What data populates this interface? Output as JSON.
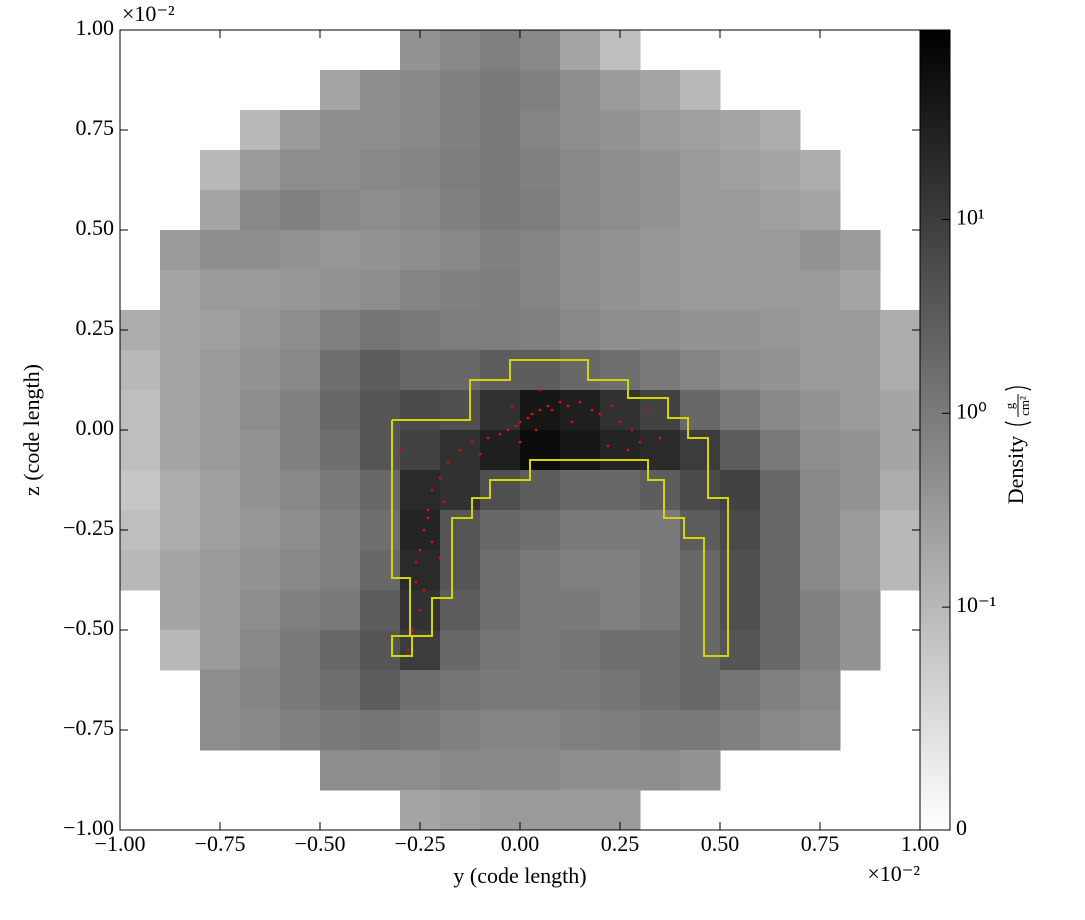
{
  "chart_data": {
    "type": "heatmap",
    "x_label": "y  (code length)",
    "y_label": "z  (code length)",
    "x_offset_label": "×10⁻²",
    "y_offset_label": "×10⁻²",
    "xlim": [
      -1,
      1
    ],
    "ylim": [
      -1,
      1
    ],
    "xticks": [
      {
        "value": -1,
        "label": "−1.00"
      },
      {
        "value": -0.75,
        "label": "−0.75"
      },
      {
        "value": -0.5,
        "label": "−0.50"
      },
      {
        "value": -0.25,
        "label": "−0.25"
      },
      {
        "value": 0,
        "label": "0.00"
      },
      {
        "value": 0.25,
        "label": "0.25"
      },
      {
        "value": 0.5,
        "label": "0.50"
      },
      {
        "value": 0.75,
        "label": "0.75"
      },
      {
        "value": 1,
        "label": "1.00"
      }
    ],
    "yticks": [
      {
        "value": -1,
        "label": "−1.00"
      },
      {
        "value": -0.75,
        "label": "−0.75"
      },
      {
        "value": -0.5,
        "label": "−0.50"
      },
      {
        "value": -0.25,
        "label": "−0.25"
      },
      {
        "value": 0,
        "label": "0.00"
      },
      {
        "value": 0.25,
        "label": "0.25"
      },
      {
        "value": 0.5,
        "label": "0.50"
      },
      {
        "value": 0.75,
        "label": "0.75"
      },
      {
        "value": 1,
        "label": "1.00"
      }
    ],
    "z": [
      [
        null,
        null,
        null,
        null,
        null,
        null,
        null,
        0.4,
        0.6,
        0.8,
        0.6,
        0.2,
        0.08,
        null,
        null,
        null,
        null,
        null,
        null,
        null
      ],
      [
        null,
        null,
        null,
        null,
        null,
        0.2,
        0.5,
        0.6,
        0.8,
        1.0,
        0.8,
        0.5,
        0.3,
        0.2,
        0.1,
        null,
        null,
        null,
        null,
        null
      ],
      [
        null,
        null,
        null,
        0.1,
        0.3,
        0.5,
        0.5,
        0.6,
        0.8,
        1.0,
        0.7,
        0.5,
        0.4,
        0.3,
        0.25,
        0.2,
        0.15,
        null,
        null,
        null
      ],
      [
        null,
        null,
        0.1,
        0.3,
        0.5,
        0.5,
        0.6,
        0.7,
        0.9,
        1.0,
        0.8,
        0.6,
        0.5,
        0.4,
        0.3,
        0.25,
        0.2,
        0.15,
        null,
        null
      ],
      [
        null,
        null,
        0.2,
        0.6,
        0.8,
        0.6,
        0.5,
        0.6,
        0.8,
        1.0,
        0.9,
        0.6,
        0.5,
        0.4,
        0.3,
        0.3,
        0.25,
        0.2,
        null,
        null
      ],
      [
        null,
        0.3,
        0.5,
        0.5,
        0.4,
        0.35,
        0.4,
        0.5,
        0.6,
        0.8,
        0.7,
        0.5,
        0.4,
        0.35,
        0.3,
        0.3,
        0.3,
        0.4,
        0.3,
        null
      ],
      [
        null,
        0.2,
        0.3,
        0.3,
        0.35,
        0.4,
        0.5,
        0.7,
        0.8,
        0.9,
        0.7,
        0.5,
        0.4,
        0.35,
        0.3,
        0.3,
        0.3,
        0.3,
        0.2,
        null
      ],
      [
        0.15,
        0.2,
        0.25,
        0.35,
        0.5,
        0.8,
        1.2,
        1.0,
        0.9,
        0.9,
        0.8,
        0.6,
        0.5,
        0.5,
        0.4,
        0.4,
        0.35,
        0.3,
        0.3,
        0.15
      ],
      [
        0.1,
        0.2,
        0.3,
        0.4,
        0.6,
        1.5,
        3,
        2,
        2,
        3,
        3,
        2,
        1.5,
        1,
        0.7,
        0.5,
        0.4,
        0.3,
        0.3,
        0.15
      ],
      [
        0.08,
        0.2,
        0.3,
        0.5,
        0.8,
        2,
        4,
        6,
        5,
        15,
        40,
        30,
        15,
        8,
        2,
        1,
        0.6,
        0.4,
        0.3,
        0.2
      ],
      [
        0.08,
        0.2,
        0.3,
        0.4,
        0.8,
        1.5,
        4,
        8,
        15,
        30,
        60,
        40,
        25,
        20,
        10,
        3,
        1,
        0.5,
        0.4,
        0.2
      ],
      [
        0.06,
        0.15,
        0.25,
        0.4,
        0.6,
        1,
        2,
        20,
        15,
        5,
        3,
        2,
        2,
        3,
        6,
        8,
        2,
        0.6,
        0.4,
        0.15
      ],
      [
        0.08,
        0.15,
        0.25,
        0.35,
        0.5,
        0.8,
        1.5,
        25,
        4,
        2,
        1.5,
        1,
        1,
        1,
        3,
        6,
        2,
        0.6,
        0.3,
        0.1
      ],
      [
        0.1,
        0.2,
        0.3,
        0.4,
        0.6,
        0.8,
        2,
        20,
        4,
        1.5,
        1,
        0.8,
        0.8,
        1,
        2,
        5,
        2,
        0.6,
        0.3,
        0.1
      ],
      [
        null,
        0.2,
        0.3,
        0.5,
        0.8,
        1,
        3,
        15,
        3,
        1.5,
        1,
        1,
        0.8,
        1,
        2,
        5,
        2,
        0.8,
        0.4,
        null
      ],
      [
        null,
        0.1,
        0.3,
        0.6,
        1,
        2,
        4,
        10,
        2,
        1.2,
        1,
        1.2,
        1.5,
        1.5,
        2,
        4,
        2,
        0.8,
        0.4,
        null
      ],
      [
        null,
        null,
        0.5,
        0.7,
        1,
        1.5,
        3,
        1.5,
        1.2,
        1,
        1,
        1,
        1.2,
        1.5,
        2,
        1.2,
        0.8,
        0.6,
        null,
        null
      ],
      [
        null,
        null,
        0.5,
        0.6,
        0.8,
        1,
        1.2,
        1,
        0.8,
        0.7,
        0.7,
        0.8,
        0.9,
        1,
        1,
        0.8,
        0.6,
        0.5,
        null,
        null
      ],
      [
        null,
        null,
        null,
        null,
        null,
        0.5,
        0.5,
        0.5,
        0.6,
        0.6,
        0.6,
        0.5,
        0.5,
        0.5,
        0.4,
        null,
        null,
        null,
        null,
        null
      ],
      [
        null,
        null,
        null,
        null,
        null,
        null,
        null,
        0.2,
        0.25,
        0.3,
        0.3,
        0.3,
        0.3,
        null,
        null,
        null,
        null,
        null,
        null,
        null
      ]
    ],
    "colorbar": {
      "label": "Density",
      "unit_numerator": "g",
      "unit_denominator": "cm²",
      "scale": "symlog",
      "linthresh": 0.01,
      "linscale": 0.15,
      "lim": [
        0,
        95
      ],
      "ticks": [
        {
          "value": 0,
          "label": "0"
        },
        {
          "value": 0.1,
          "label": "10⁻¹"
        },
        {
          "value": 1,
          "label": "10⁰"
        },
        {
          "value": 10,
          "label": "10¹"
        }
      ]
    },
    "contour": {
      "color": "#d4d400",
      "x": [
        -0.32,
        -0.32,
        -0.275,
        -0.275,
        -0.32,
        -0.32,
        -0.27,
        -0.27,
        -0.22,
        -0.22,
        -0.17,
        -0.17,
        -0.12,
        -0.12,
        -0.075,
        -0.075,
        0.025,
        0.025,
        0.32,
        0.32,
        0.36,
        0.36,
        0.41,
        0.41,
        0.46,
        0.46,
        0.52,
        0.52,
        0.47,
        0.47,
        0.42,
        0.42,
        0.37,
        0.37,
        0.27,
        0.27,
        0.17,
        0.17,
        -0.025,
        -0.025,
        -0.125,
        -0.125,
        -0.32
      ],
      "y": [
        0.025,
        -0.37,
        -0.37,
        -0.515,
        -0.515,
        -0.565,
        -0.565,
        -0.515,
        -0.515,
        -0.42,
        -0.42,
        -0.22,
        -0.22,
        -0.17,
        -0.17,
        -0.125,
        -0.125,
        -0.075,
        -0.075,
        -0.125,
        -0.125,
        -0.22,
        -0.22,
        -0.27,
        -0.27,
        -0.565,
        -0.565,
        -0.17,
        -0.17,
        -0.02,
        -0.02,
        0.03,
        0.03,
        0.08,
        0.08,
        0.125,
        0.125,
        0.175,
        0.175,
        0.125,
        0.125,
        0.025,
        0.025
      ]
    },
    "particles": {
      "color": "#ff0000",
      "x": [
        -0.25,
        -0.26,
        -0.25,
        -0.24,
        -0.23,
        -0.22,
        -0.2,
        -0.18,
        -0.22,
        -0.26,
        -0.24,
        -0.27,
        -0.19,
        -0.15,
        -0.12,
        -0.1,
        -0.08,
        -0.05,
        -0.03,
        -0.01,
        0.0,
        0.02,
        0.03,
        0.05,
        0.07,
        0.08,
        0.1,
        0.12,
        0.15,
        0.18,
        0.2,
        0.23,
        0.25,
        0.28,
        0.3,
        0.27,
        0.22,
        0.13,
        0.05,
        -0.02,
        0.0,
        0.04,
        -0.3,
        -0.28,
        -0.23,
        0.35,
        0.32,
        -0.2
      ],
      "y": [
        -0.45,
        -0.38,
        -0.3,
        -0.25,
        -0.2,
        -0.15,
        -0.12,
        -0.08,
        -0.28,
        -0.33,
        -0.4,
        -0.5,
        -0.18,
        -0.05,
        -0.03,
        -0.06,
        -0.02,
        -0.01,
        0.0,
        0.01,
        0.02,
        0.03,
        0.04,
        0.05,
        0.06,
        0.05,
        0.07,
        0.06,
        0.07,
        0.05,
        0.04,
        0.06,
        0.02,
        0.0,
        -0.03,
        -0.05,
        -0.04,
        0.02,
        0.1,
        0.06,
        -0.03,
        0.0,
        -0.05,
        -0.55,
        -0.22,
        -0.02,
        0.05,
        -0.32
      ]
    }
  }
}
